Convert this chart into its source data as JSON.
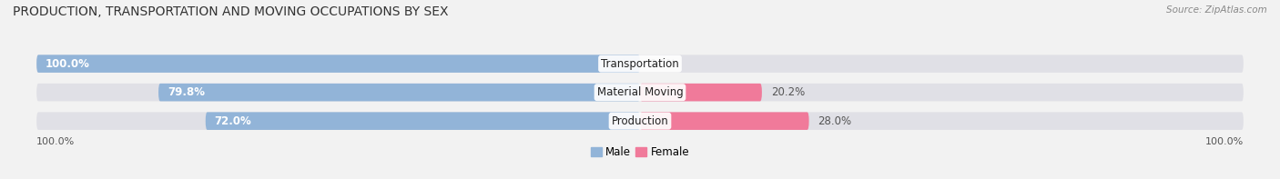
{
  "title": "PRODUCTION, TRANSPORTATION AND MOVING OCCUPATIONS BY SEX",
  "source": "Source: ZipAtlas.com",
  "categories": [
    "Transportation",
    "Material Moving",
    "Production"
  ],
  "male_pct": [
    100.0,
    79.8,
    72.0
  ],
  "female_pct": [
    0.0,
    20.2,
    28.0
  ],
  "male_color": "#92b4d8",
  "female_color": "#f07a9a",
  "bar_bg_color": "#e0e0e6",
  "fig_bg_color": "#f2f2f2",
  "title_fontsize": 10,
  "source_fontsize": 7.5,
  "label_fontsize": 8.5,
  "cat_fontsize": 8.5,
  "x_left_label": "100.0%",
  "x_right_label": "100.0%"
}
